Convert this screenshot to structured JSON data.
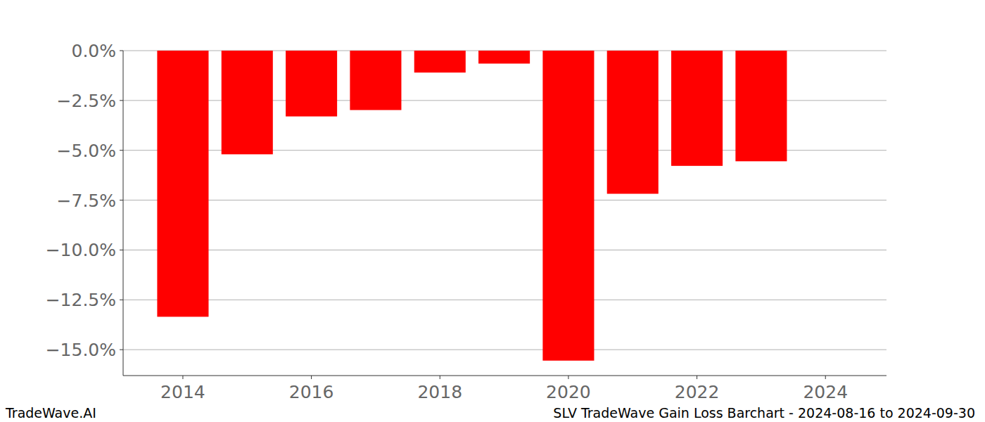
{
  "chart_data": {
    "type": "bar",
    "title": "SLV TradeWave Gain Loss Barchart - 2024-08-16 to 2024-09-30",
    "annotations": [
      "TradeWave.AI"
    ],
    "x": [
      2014,
      2015,
      2016,
      2017,
      2018,
      2019,
      2020,
      2021,
      2022,
      2023
    ],
    "values": [
      -13.35,
      -5.2,
      -3.3,
      -2.98,
      -1.1,
      -0.65,
      -15.55,
      -7.18,
      -5.78,
      -5.55
    ],
    "color": "#ff0000",
    "xlim": [
      2013.07,
      2024.95
    ],
    "xticks": [
      2014,
      2016,
      2018,
      2020,
      2022,
      2024
    ],
    "ylim": [
      -16.3,
      0
    ],
    "yticks": [
      {
        "value": 0,
        "label": "0.0%"
      },
      {
        "value": -2.5,
        "label": "−2.5%"
      },
      {
        "value": -5,
        "label": "−5.0%"
      },
      {
        "value": -7.5,
        "label": "−7.5%"
      },
      {
        "value": -10,
        "label": "−10.0%"
      },
      {
        "value": -12.5,
        "label": "−12.5%"
      },
      {
        "value": -15,
        "label": "−15.0%"
      }
    ],
    "grid": true
  }
}
